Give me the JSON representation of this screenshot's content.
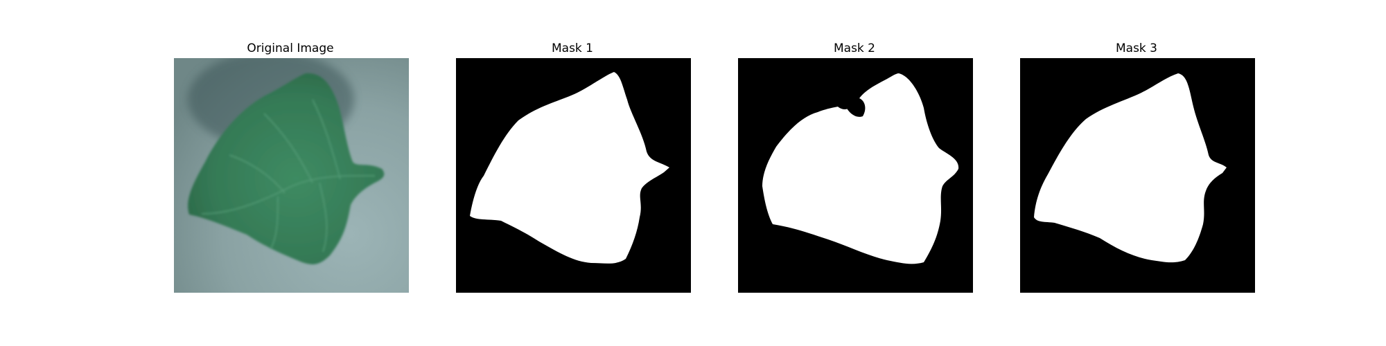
{
  "panels": [
    {
      "title": "Original Image"
    },
    {
      "title": "Mask 1"
    },
    {
      "title": "Mask 2"
    },
    {
      "title": "Mask 3"
    }
  ],
  "colors": {
    "background": "#ffffff",
    "mask_fg": "#ffffff",
    "mask_bg": "#000000",
    "leaf": "#3f8a62",
    "surface": "#8fa8a8"
  }
}
